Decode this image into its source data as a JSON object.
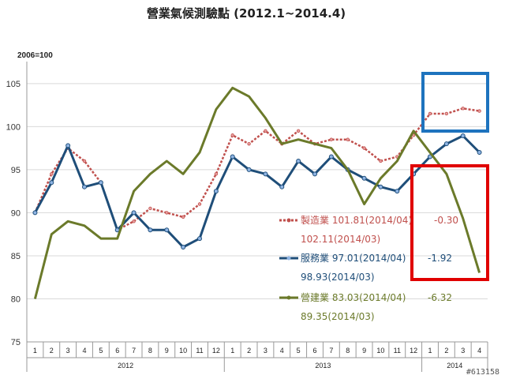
{
  "chart_data": {
    "type": "line",
    "title": "營業氣候測驗點 (2012.1~2014.4)",
    "unit_label": "2006=100",
    "ylim": [
      75,
      107
    ],
    "yticks": [
      75,
      80,
      85,
      90,
      95,
      100,
      105
    ],
    "months": [
      "1",
      "2",
      "3",
      "4",
      "5",
      "6",
      "7",
      "8",
      "9",
      "10",
      "11",
      "12",
      "1",
      "2",
      "3",
      "4",
      "5",
      "6",
      "7",
      "8",
      "9",
      "10",
      "11",
      "12",
      "1",
      "2",
      "3",
      "4"
    ],
    "years": [
      "2012",
      "2013",
      "2014"
    ],
    "series": [
      {
        "name": "製造業",
        "color": "#c0504d",
        "values": [
          90.0,
          94.5,
          97.5,
          96.0,
          93.5,
          88.0,
          89.0,
          90.5,
          90.0,
          89.5,
          91.0,
          94.5,
          99.0,
          98.0,
          99.5,
          98.0,
          99.5,
          98.0,
          98.5,
          98.5,
          97.5,
          96.0,
          96.5,
          99.0,
          101.5,
          101.5,
          102.11,
          101.81
        ]
      },
      {
        "name": "服務業",
        "color": "#1f4e79",
        "values": [
          90.0,
          93.5,
          97.8,
          93.0,
          93.5,
          88.0,
          90.0,
          88.0,
          88.0,
          86.0,
          87.0,
          92.5,
          96.5,
          95.0,
          94.5,
          93.0,
          96.0,
          94.5,
          96.5,
          95.0,
          94.0,
          93.0,
          92.5,
          94.5,
          96.5,
          98.0,
          98.93,
          97.01
        ]
      },
      {
        "name": "營建業",
        "color": "#6b7a2a",
        "values": [
          80.0,
          87.5,
          89.0,
          88.5,
          87.0,
          87.0,
          92.5,
          94.5,
          96.0,
          94.5,
          97.0,
          102.0,
          104.5,
          103.5,
          101.0,
          98.0,
          98.5,
          98.0,
          97.5,
          95.0,
          91.0,
          94.0,
          96.0,
          99.5,
          97.0,
          94.5,
          89.35,
          83.03
        ]
      }
    ]
  },
  "annotations": [
    {
      "line1": "製造業  101.81(2014/04)",
      "change": "-0.30",
      "line2": "102.11(2014/03)"
    },
    {
      "line1": "服務業  97.01(2014/04)",
      "change": "-1.92",
      "line2": "98.93(2014/03)"
    },
    {
      "line1": "營建業  83.03(2014/04)",
      "change": "-6.32",
      "line2": "89.35(2014/03)"
    }
  ],
  "highlights": {
    "blue": "#1e73be",
    "red": "#e00000"
  },
  "watermark": "#613158"
}
